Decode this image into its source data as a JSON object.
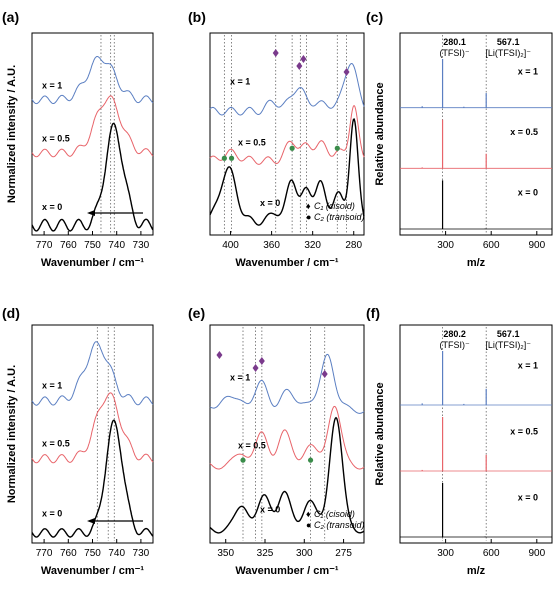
{
  "chart_data": [
    {
      "panel": "(a)",
      "type": "line",
      "xlabel": "Wavenumber / cm⁻¹",
      "ylabel": "Normalized intensity / A.U.",
      "xlim": [
        775,
        725
      ],
      "xticks": [
        770,
        760,
        750,
        740,
        730
      ],
      "ref_lines": [
        746.5,
        742.5,
        741
      ],
      "arrow": true,
      "series": [
        {
          "label": "x = 1",
          "color": "#5b7fc2",
          "offset": 0.66,
          "center": 746.5,
          "width": 5.6,
          "height": 0.22,
          "base": 0.02,
          "wave": 0.02
        },
        {
          "label": "x = 0.5",
          "color": "#e8646a",
          "offset": 0.38,
          "center": 743.5,
          "width": 5.2,
          "height": 0.29,
          "base": 0.02,
          "wave": 0.02
        },
        {
          "label": "x = 0",
          "color": "#000000",
          "offset": 0.02,
          "center": 741.0,
          "width": 3.8,
          "height": 0.51,
          "base": 0.0,
          "wave": 0.03
        }
      ]
    },
    {
      "panel": "(b)",
      "type": "line",
      "xlabel": "Wavenumber / cm⁻¹",
      "xlim": [
        420,
        270
      ],
      "xticks": [
        400,
        360,
        320,
        280
      ],
      "ref_lines": [
        406,
        399,
        356,
        340,
        332,
        326,
        296,
        287
      ],
      "series": [
        {
          "label": "x = 1",
          "color": "#5b7fc2",
          "offset": 0.62,
          "peaks": [
            [
              358,
              0.05,
              6
            ],
            [
              338,
              0.07,
              6
            ],
            [
              332,
              0.08,
              5
            ],
            [
              316,
              0.05,
              6
            ],
            [
              298,
              0.04,
              5
            ],
            [
              287,
              0.09,
              5
            ],
            [
              281,
              0.22,
              5
            ]
          ]
        },
        {
          "label": "x = 0.5",
          "color": "#e8646a",
          "offset": 0.36,
          "peaks": [
            [
              400,
              0.04,
              8
            ],
            [
              340,
              0.1,
              6
            ],
            [
              326,
              0.06,
              5
            ],
            [
              313,
              0.09,
              6
            ],
            [
              296,
              0.05,
              5
            ],
            [
              280,
              0.3,
              4
            ]
          ]
        },
        {
          "label": "x = 0",
          "color": "#000000",
          "offset": 0.04,
          "peaks": [
            [
              406,
              0.15,
              7
            ],
            [
              399,
              0.16,
              7
            ],
            [
              356,
              0.05,
              5
            ],
            [
              340,
              0.22,
              5
            ],
            [
              326,
              0.15,
              5
            ],
            [
              313,
              0.2,
              5
            ],
            [
              296,
              0.15,
              5
            ],
            [
              280,
              0.55,
              4
            ]
          ]
        }
      ],
      "markers": {
        "diamonds": [
          356,
          333,
          329,
          287
        ],
        "circles": [
          406,
          399,
          340,
          296
        ]
      },
      "legend": [
        {
          "symbol": "♦",
          "text": "C₁ (cisoid)",
          "color": "#7a3a8c"
        },
        {
          "symbol": "●",
          "text": "C₂ (transoid)",
          "color": "#3a8c4a"
        }
      ]
    },
    {
      "panel": "(c)",
      "type": "bar",
      "xlabel": "m/z",
      "ylabel": "Relative abundance",
      "xlim": [
        0,
        1000
      ],
      "xticks": [
        300,
        600,
        900
      ],
      "ref_lines": [
        280.1,
        567.1
      ],
      "peak_labels": [
        {
          "mass": "280.1",
          "ion": "(TFSI)⁻"
        },
        {
          "mass": "567.1",
          "ion": "[Li(TFSI)₂]⁻"
        }
      ],
      "series": [
        {
          "label": "x = 1",
          "color": "#5b7fc2",
          "peaks": [
            [
              280.1,
              1.0
            ],
            [
              567.1,
              0.3
            ],
            [
              146,
              0.03
            ],
            [
              420,
              0.02
            ]
          ]
        },
        {
          "label": "x = 0.5",
          "color": "#e8646a",
          "peaks": [
            [
              280.1,
              1.0
            ],
            [
              567.1,
              0.3
            ],
            [
              146,
              0.02
            ]
          ]
        },
        {
          "label": "x = 0",
          "color": "#000000",
          "peaks": [
            [
              280.1,
              1.0
            ],
            [
              560,
              0.01
            ]
          ]
        }
      ]
    },
    {
      "panel": "(d)",
      "type": "line",
      "xlabel": "Wavenumber / cm⁻¹",
      "ylabel": "Normalized intensity / A.U.",
      "xlim": [
        775,
        725
      ],
      "xticks": [
        770,
        760,
        750,
        740,
        730
      ],
      "ref_lines": [
        748,
        743.5,
        741
      ],
      "arrow": true,
      "series": [
        {
          "label": "x = 1",
          "color": "#5b7fc2",
          "offset": 0.64,
          "center": 748,
          "width": 5.2,
          "height": 0.27,
          "base": 0.02,
          "wave": 0.02
        },
        {
          "label": "x = 0.5",
          "color": "#e8646a",
          "offset": 0.36,
          "center": 743.5,
          "width": 5.0,
          "height": 0.31,
          "base": 0.02,
          "wave": 0.02
        },
        {
          "label": "x = 0",
          "color": "#000000",
          "offset": 0.02,
          "center": 741.0,
          "width": 3.6,
          "height": 0.53,
          "base": 0.0,
          "wave": 0.02
        }
      ]
    },
    {
      "panel": "(e)",
      "type": "line",
      "xlabel": "Wavenumber / cm⁻¹",
      "xlim": [
        360,
        262
      ],
      "xticks": [
        350,
        325,
        300,
        275
      ],
      "ref_lines": [
        339,
        331,
        327,
        296,
        287
      ],
      "series": [
        {
          "label": "x = 1",
          "color": "#5b7fc2",
          "offset": 0.62,
          "peaks": [
            [
              351,
              0.06,
              4
            ],
            [
              339,
              0.05,
              4
            ],
            [
              327,
              0.12,
              4
            ],
            [
              312,
              0.08,
              4
            ],
            [
              300,
              0.05,
              4
            ],
            [
              285,
              0.28,
              4
            ]
          ]
        },
        {
          "label": "x = 0.5",
          "color": "#e8646a",
          "offset": 0.35,
          "peaks": [
            [
              339,
              0.06,
              4
            ],
            [
              327,
              0.14,
              4
            ],
            [
              313,
              0.16,
              4
            ],
            [
              297,
              0.1,
              4
            ],
            [
              281,
              0.3,
              4
            ]
          ]
        },
        {
          "label": "x = 0",
          "color": "#000000",
          "offset": 0.04,
          "peaks": [
            [
              339,
              0.12,
              4
            ],
            [
              325,
              0.15,
              4
            ],
            [
              313,
              0.17,
              4
            ],
            [
              297,
              0.14,
              4
            ],
            [
              280,
              0.55,
              4
            ]
          ]
        }
      ],
      "markers": {
        "diamonds": [
          354,
          331,
          327,
          287
        ],
        "circles": [
          339,
          296
        ]
      },
      "legend": [
        {
          "symbol": "♦",
          "text": "C₁ (cisoid)",
          "color": "#7a3a8c"
        },
        {
          "symbol": "●",
          "text": "C₂ (transoid)",
          "color": "#3a8c4a"
        }
      ]
    },
    {
      "panel": "(f)",
      "type": "bar",
      "xlabel": "m/z",
      "ylabel": "Relative abundance",
      "xlim": [
        0,
        1000
      ],
      "xticks": [
        300,
        600,
        900
      ],
      "ref_lines": [
        280.2,
        567.1
      ],
      "peak_labels": [
        {
          "mass": "280.2",
          "ion": "(TFSI)⁻"
        },
        {
          "mass": "567.1",
          "ion": "[Li(TFSI)₂]⁻"
        }
      ],
      "series": [
        {
          "label": "x = 1",
          "color": "#5b7fc2",
          "peaks": [
            [
              280.2,
              1.0
            ],
            [
              567.1,
              0.3
            ],
            [
              146,
              0.03
            ],
            [
              420,
              0.02
            ]
          ]
        },
        {
          "label": "x = 0.5",
          "color": "#e8646a",
          "peaks": [
            [
              280.2,
              1.0
            ],
            [
              567.1,
              0.3
            ],
            [
              146,
              0.02
            ]
          ]
        },
        {
          "label": "x = 0",
          "color": "#000000",
          "peaks": [
            [
              280.2,
              1.0
            ],
            [
              560,
              0.01
            ]
          ]
        }
      ]
    }
  ]
}
